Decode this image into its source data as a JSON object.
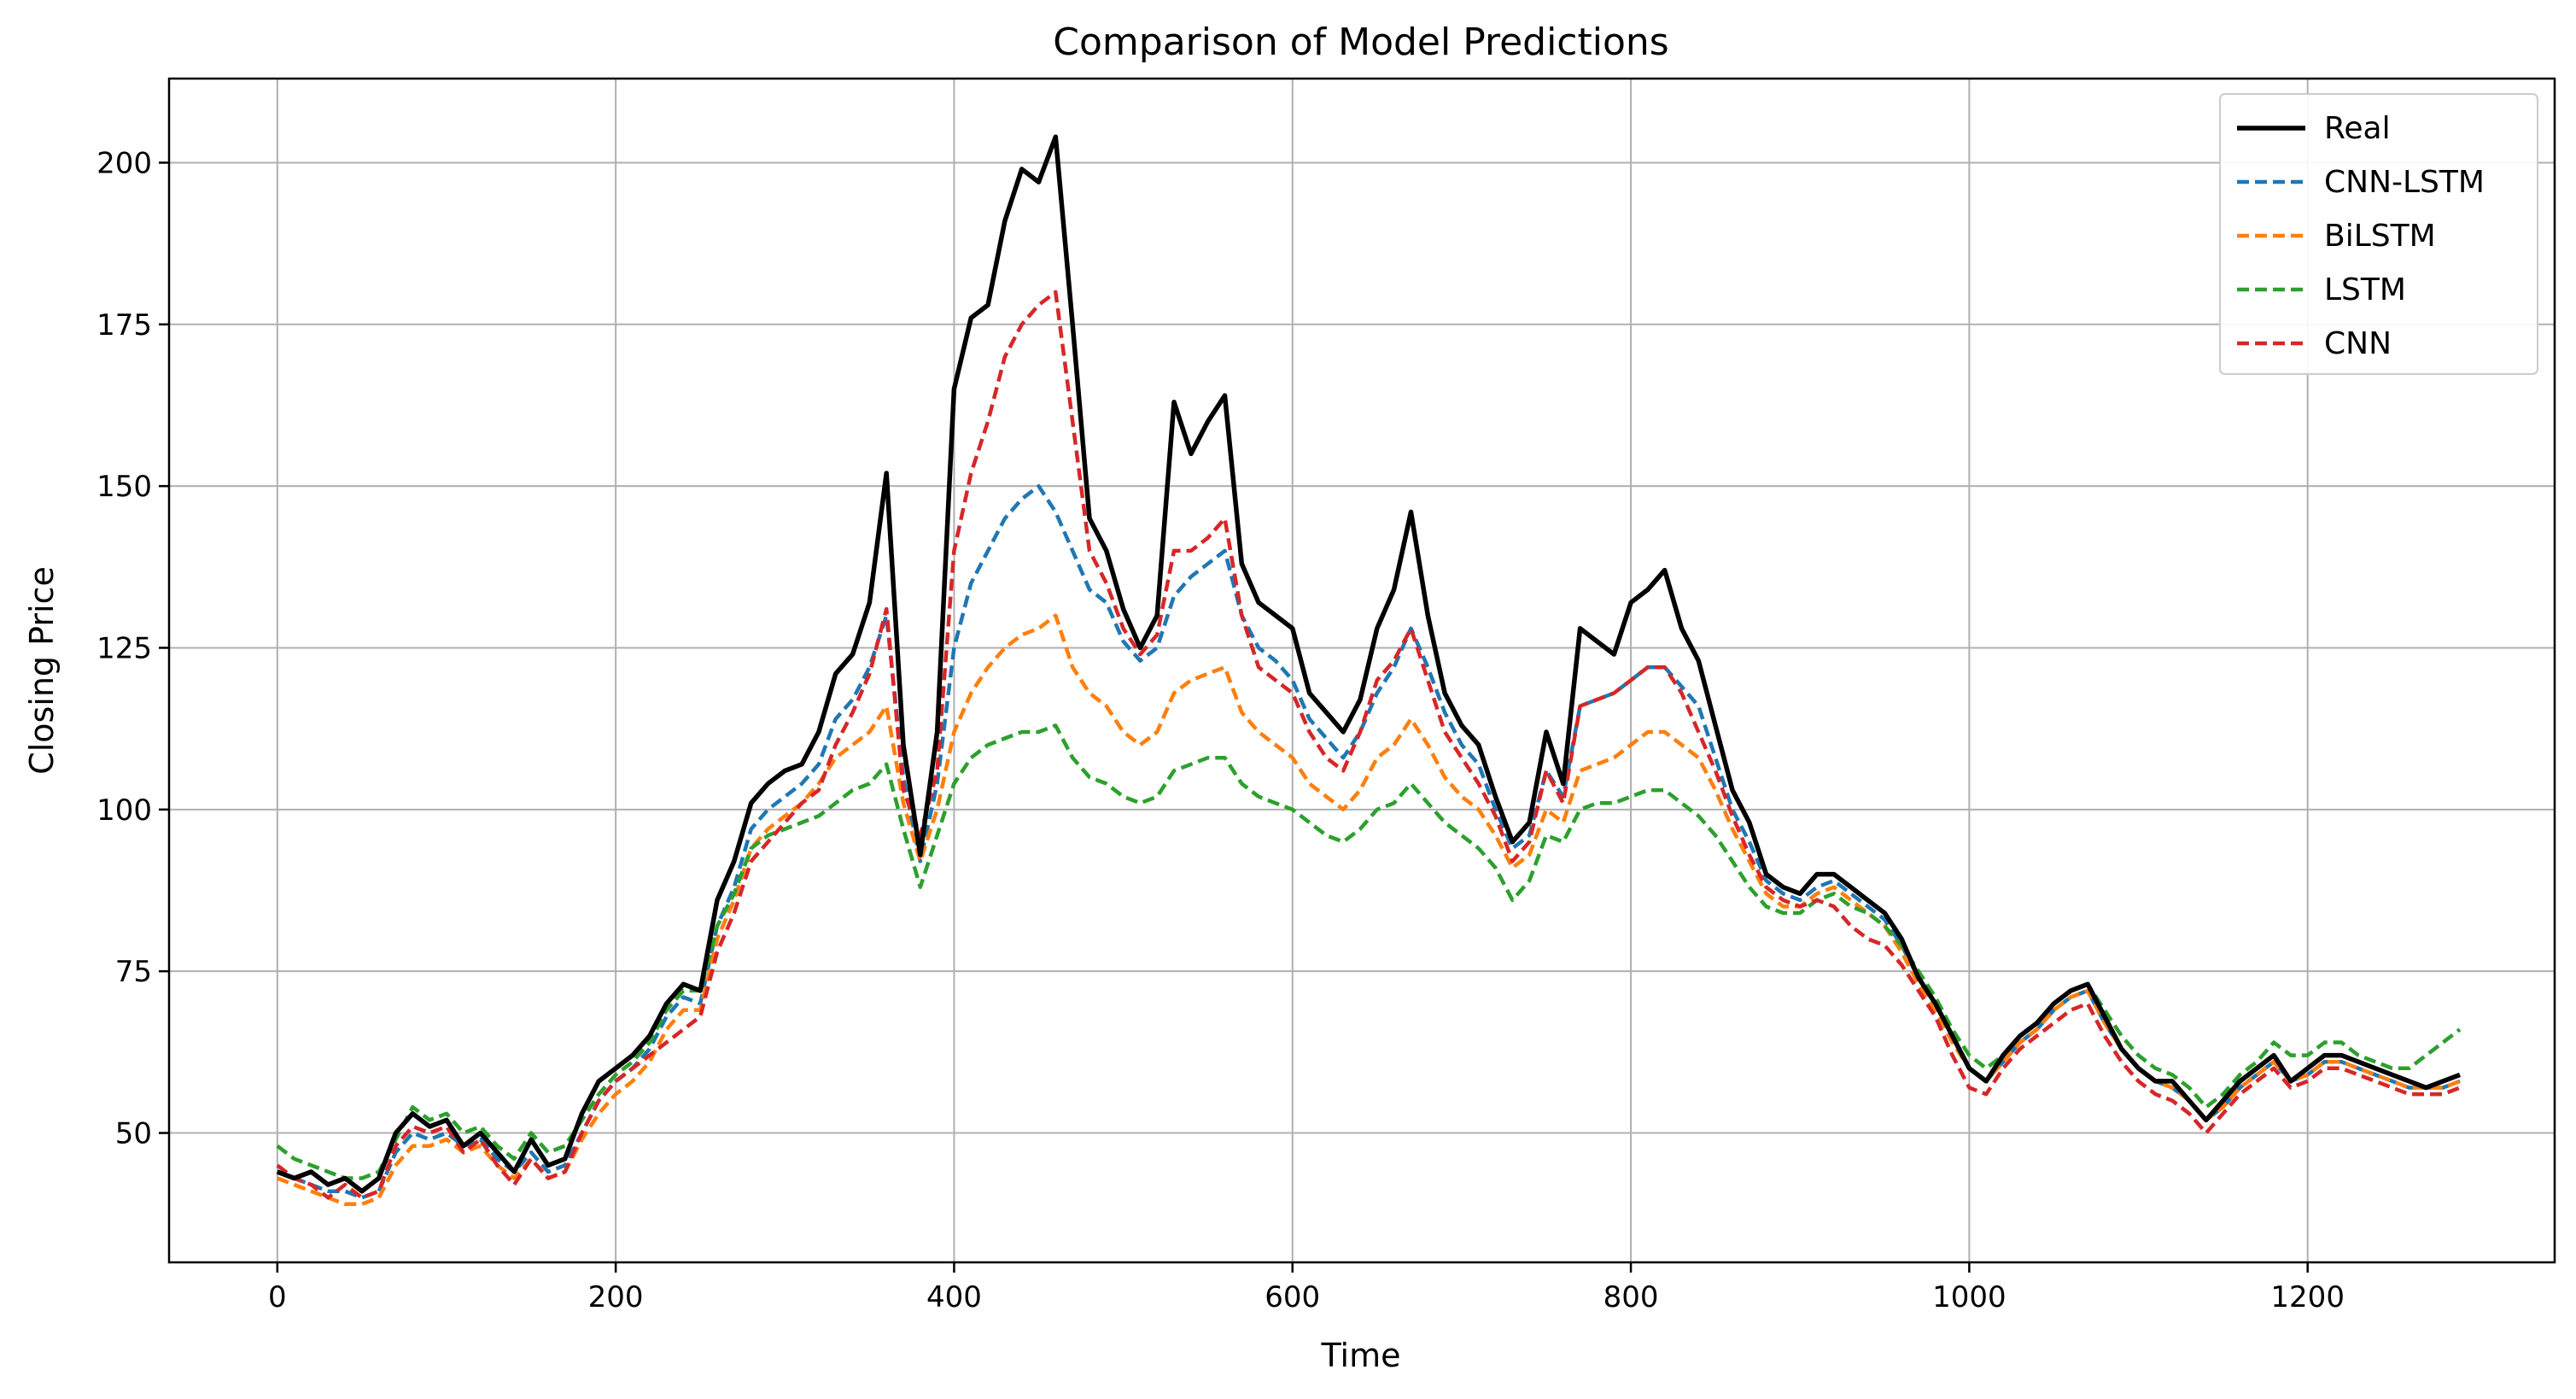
{
  "chart_data": {
    "type": "line",
    "title": "Comparison of Model Predictions",
    "xlabel": "Time",
    "ylabel": "Closing Price",
    "xlim": [
      -64,
      1346
    ],
    "ylim": [
      30,
      213
    ],
    "xticks": [
      0,
      200,
      400,
      600,
      800,
      1000,
      1200
    ],
    "xtick_labels": [
      "0",
      "200",
      "400",
      "600",
      "800",
      "1000",
      "1200"
    ],
    "yticks": [
      50,
      75,
      100,
      125,
      150,
      175,
      200
    ],
    "ytick_labels": [
      "50",
      "75",
      "100",
      "125",
      "150",
      "175",
      "200"
    ],
    "grid": true,
    "legend_position": "top-right",
    "x_step": 10,
    "series": [
      {
        "name": "Real",
        "color": "#000000",
        "style": "solid",
        "values": [
          44,
          43,
          44,
          42,
          43,
          41,
          43,
          50,
          53,
          51,
          52,
          48,
          50,
          47,
          44,
          49,
          45,
          46,
          53,
          58,
          60,
          62,
          65,
          70,
          73,
          72,
          86,
          92,
          101,
          104,
          106,
          107,
          112,
          121,
          124,
          132,
          152,
          110,
          93,
          112,
          165,
          176,
          178,
          191,
          199,
          197,
          204,
          175,
          145,
          140,
          131,
          125,
          130,
          163,
          155,
          160,
          164,
          138,
          132,
          130,
          128,
          118,
          115,
          112,
          117,
          128,
          134,
          146,
          130,
          118,
          113,
          110,
          102,
          95,
          98,
          112,
          104,
          128,
          126,
          124,
          132,
          134,
          137,
          128,
          123,
          113,
          103,
          98,
          90,
          88,
          87,
          90,
          90,
          88,
          86,
          84,
          80,
          74,
          70,
          65,
          60,
          58,
          62,
          65,
          67,
          70,
          72,
          73,
          68,
          63,
          60,
          58,
          58,
          55,
          52,
          55,
          58,
          60,
          62,
          58,
          60,
          62,
          62,
          61,
          60,
          59,
          58,
          57,
          58,
          59
        ]
      },
      {
        "name": "CNN-LSTM",
        "color": "#1f77b4",
        "style": "dashed",
        "values": [
          44,
          43,
          42,
          41,
          41,
          40,
          41,
          47,
          50,
          49,
          50,
          48,
          49,
          46,
          44,
          47,
          44,
          45,
          50,
          55,
          58,
          60,
          63,
          68,
          71,
          70,
          82,
          88,
          97,
          100,
          102,
          104,
          107,
          114,
          117,
          122,
          130,
          105,
          92,
          104,
          125,
          135,
          140,
          145,
          148,
          150,
          146,
          140,
          134,
          132,
          126,
          123,
          125,
          133,
          136,
          138,
          140,
          130,
          125,
          123,
          120,
          114,
          111,
          108,
          112,
          118,
          122,
          128,
          122,
          115,
          110,
          107,
          100,
          94,
          96,
          106,
          102,
          116,
          117,
          118,
          120,
          122,
          122,
          119,
          116,
          108,
          100,
          95,
          89,
          87,
          86,
          88,
          89,
          87,
          85,
          83,
          79,
          74,
          70,
          65,
          60,
          58,
          61,
          64,
          66,
          69,
          71,
          72,
          67,
          63,
          60,
          58,
          57,
          55,
          52,
          54,
          57,
          59,
          61,
          58,
          59,
          61,
          61,
          60,
          59,
          58,
          57,
          57,
          57,
          58
        ]
      },
      {
        "name": "BiLSTM",
        "color": "#ff7f0e",
        "style": "dashed",
        "values": [
          43,
          42,
          41,
          40,
          39,
          39,
          40,
          45,
          48,
          48,
          49,
          47,
          48,
          45,
          43,
          46,
          43,
          44,
          49,
          53,
          56,
          58,
          61,
          66,
          69,
          69,
          80,
          86,
          94,
          97,
          99,
          101,
          104,
          108,
          110,
          112,
          116,
          101,
          92,
          100,
          112,
          118,
          122,
          125,
          127,
          128,
          130,
          122,
          118,
          116,
          112,
          110,
          112,
          118,
          120,
          121,
          122,
          115,
          112,
          110,
          108,
          104,
          102,
          100,
          103,
          108,
          110,
          114,
          110,
          105,
          102,
          100,
          96,
          91,
          93,
          100,
          98,
          106,
          107,
          108,
          110,
          112,
          112,
          110,
          108,
          103,
          97,
          92,
          87,
          85,
          85,
          87,
          88,
          86,
          84,
          82,
          78,
          73,
          69,
          64,
          60,
          58,
          61,
          64,
          66,
          69,
          71,
          72,
          67,
          63,
          60,
          58,
          57,
          55,
          52,
          54,
          57,
          59,
          61,
          58,
          59,
          61,
          61,
          60,
          59,
          58,
          57,
          57,
          57,
          58
        ]
      },
      {
        "name": "LSTM",
        "color": "#2ca02c",
        "style": "dashed",
        "values": [
          48,
          46,
          45,
          44,
          43,
          43,
          44,
          49,
          54,
          52,
          53,
          50,
          51,
          48,
          46,
          50,
          47,
          48,
          52,
          56,
          59,
          61,
          64,
          69,
          72,
          72,
          82,
          87,
          94,
          96,
          97,
          98,
          99,
          101,
          103,
          104,
          107,
          97,
          88,
          96,
          104,
          108,
          110,
          111,
          112,
          112,
          113,
          108,
          105,
          104,
          102,
          101,
          102,
          106,
          107,
          108,
          108,
          104,
          102,
          101,
          100,
          98,
          96,
          95,
          97,
          100,
          101,
          104,
          101,
          98,
          96,
          94,
          91,
          86,
          89,
          96,
          95,
          100,
          101,
          101,
          102,
          103,
          103,
          101,
          99,
          96,
          92,
          88,
          85,
          84,
          84,
          86,
          87,
          85,
          84,
          82,
          79,
          75,
          71,
          66,
          62,
          60,
          62,
          65,
          67,
          70,
          72,
          73,
          69,
          65,
          62,
          60,
          59,
          57,
          54,
          56,
          59,
          61,
          64,
          62,
          62,
          64,
          64,
          62,
          61,
          60,
          60,
          62,
          64,
          66
        ]
      },
      {
        "name": "CNN",
        "color": "#d62728",
        "style": "dashed",
        "values": [
          45,
          43,
          42,
          40,
          42,
          40,
          41,
          48,
          51,
          50,
          51,
          47,
          49,
          45,
          42,
          46,
          43,
          44,
          50,
          55,
          58,
          60,
          62,
          64,
          66,
          68,
          78,
          84,
          92,
          95,
          98,
          101,
          103,
          110,
          115,
          121,
          131,
          103,
          96,
          106,
          140,
          152,
          160,
          170,
          175,
          178,
          180,
          160,
          140,
          135,
          128,
          124,
          127,
          140,
          140,
          142,
          145,
          130,
          122,
          120,
          118,
          112,
          108,
          106,
          112,
          120,
          123,
          128,
          120,
          112,
          108,
          104,
          99,
          92,
          95,
          106,
          101,
          116,
          117,
          118,
          120,
          122,
          122,
          118,
          112,
          106,
          99,
          93,
          88,
          86,
          85,
          86,
          85,
          82,
          80,
          79,
          76,
          72,
          68,
          62,
          57,
          56,
          60,
          63,
          65,
          67,
          69,
          70,
          65,
          61,
          58,
          56,
          55,
          53,
          50,
          53,
          56,
          58,
          60,
          57,
          58,
          60,
          60,
          59,
          58,
          57,
          56,
          56,
          56,
          57
        ]
      }
    ]
  }
}
